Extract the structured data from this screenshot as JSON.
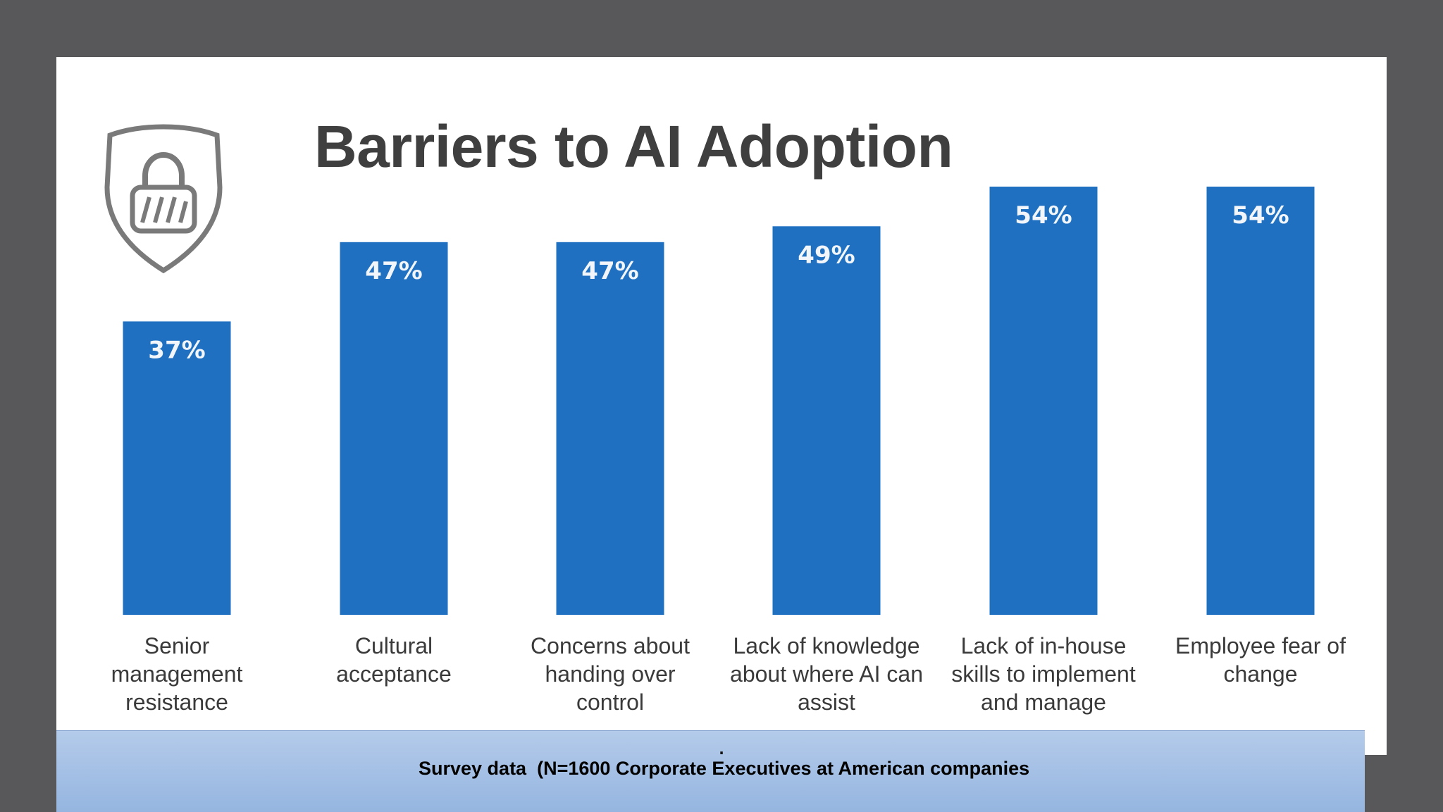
{
  "chart_data": {
    "type": "bar",
    "title": "Barriers to AI Adoption",
    "categories": [
      [
        "Senior",
        "management",
        "resistance"
      ],
      [
        "Cultural",
        "acceptance"
      ],
      [
        "Concerns about",
        "handing over",
        "control"
      ],
      [
        "Lack of knowledge",
        "about where AI can",
        "assist"
      ],
      [
        "Lack of in-house",
        "skills to implement",
        "and manage"
      ],
      [
        "Employee fear of",
        "change"
      ]
    ],
    "values": [
      37,
      47,
      47,
      49,
      54,
      54
    ],
    "value_labels": [
      "37%",
      "47%",
      "47%",
      "49%",
      "54%",
      "54%"
    ],
    "bar_color": "#1f70c1",
    "grid": false
  },
  "footer": {
    "dot": ".",
    "text": "Survey data  (N=1600 Corporate Executives at American companies"
  },
  "icons": {
    "badge": "shield-lock-icon"
  }
}
